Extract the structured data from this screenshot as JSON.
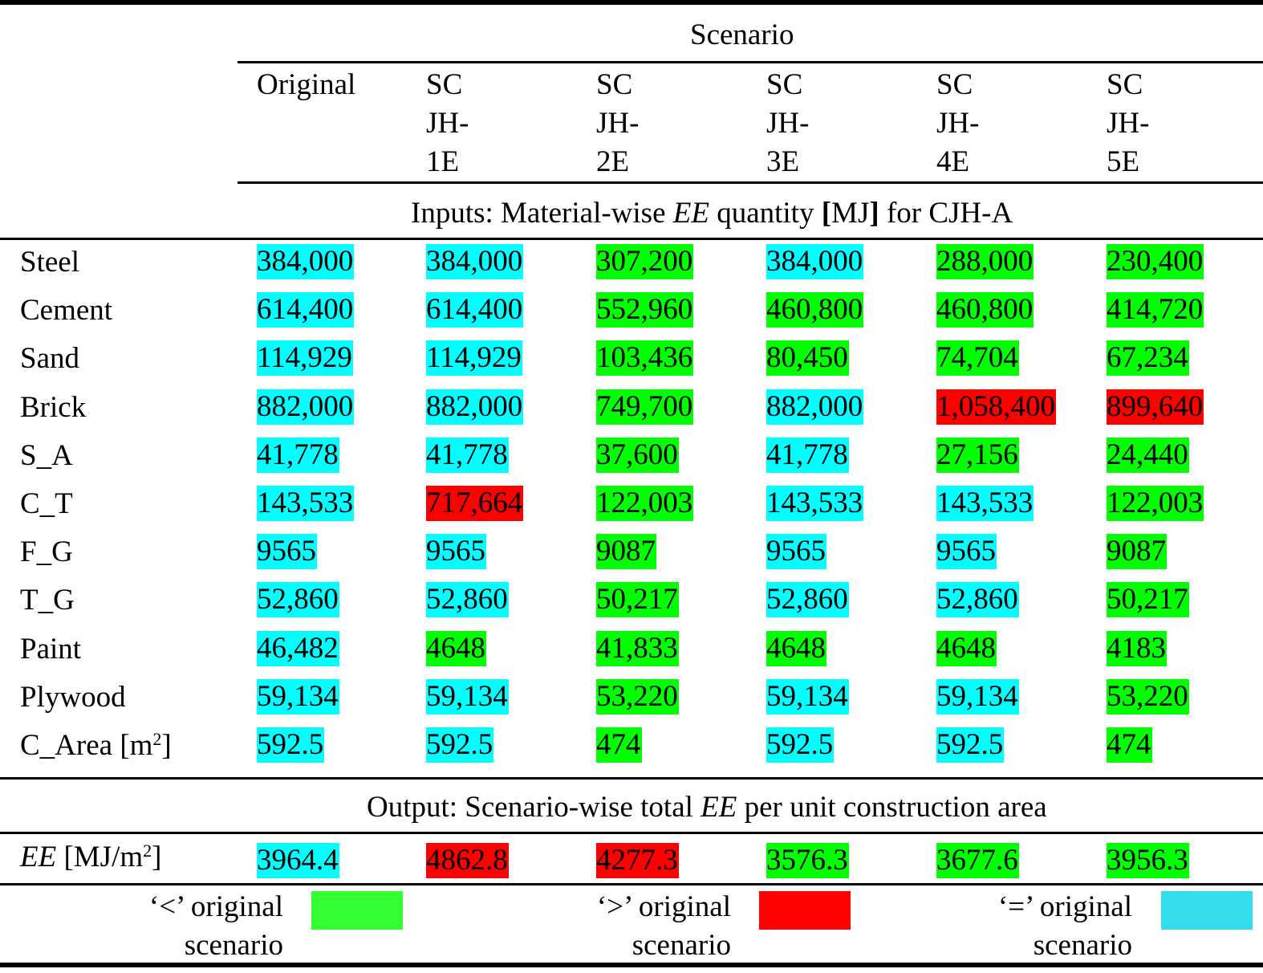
{
  "header": {
    "scenario_label": "Scenario",
    "columns": [
      "Original",
      "SC\nJH-\n1E",
      "SC\nJH-\n2E",
      "SC\nJH-\n3E",
      "SC\nJH-\n4E",
      "SC\nJH-\n5E"
    ]
  },
  "inputs_section": {
    "prefix": "Inputs: Material-wise ",
    "italic": "EE",
    "mid": " quantity ",
    "bold_open": "[",
    "unit": "MJ",
    "bold_close": "]",
    "suffix": " for CJH-A"
  },
  "rows": [
    {
      "label": "Steel",
      "values": [
        "384,000",
        "384,000",
        "307,200",
        "384,000",
        "288,000",
        "230,400"
      ],
      "status": [
        "eq",
        "eq",
        "less",
        "eq",
        "less",
        "less"
      ]
    },
    {
      "label": "Cement",
      "values": [
        "614,400",
        "614,400",
        "552,960",
        "460,800",
        "460,800",
        "414,720"
      ],
      "status": [
        "eq",
        "eq",
        "less",
        "less",
        "less",
        "less"
      ]
    },
    {
      "label": "Sand",
      "values": [
        "114,929",
        "114,929",
        "103,436",
        "80,450",
        "74,704",
        "67,234"
      ],
      "status": [
        "eq",
        "eq",
        "less",
        "less",
        "less",
        "less"
      ]
    },
    {
      "label": "Brick",
      "values": [
        "882,000",
        "882,000",
        "749,700",
        "882,000",
        "1,058,400",
        "899,640"
      ],
      "status": [
        "eq",
        "eq",
        "less",
        "eq",
        "more",
        "more"
      ]
    },
    {
      "label": "S_A",
      "values": [
        "41,778",
        "41,778",
        "37,600",
        "41,778",
        "27,156",
        "24,440"
      ],
      "status": [
        "eq",
        "eq",
        "less",
        "eq",
        "less",
        "less"
      ]
    },
    {
      "label": "C_T",
      "values": [
        "143,533",
        "717,664",
        "122,003",
        "143,533",
        "143,533",
        "122,003"
      ],
      "status": [
        "eq",
        "more",
        "less",
        "eq",
        "eq",
        "less"
      ]
    },
    {
      "label": "F_G",
      "values": [
        "9565",
        "9565",
        "9087",
        "9565",
        "9565",
        "9087"
      ],
      "status": [
        "eq",
        "eq",
        "less",
        "eq",
        "eq",
        "less"
      ]
    },
    {
      "label": "T_G",
      "values": [
        "52,860",
        "52,860",
        "50,217",
        "52,860",
        "52,860",
        "50,217"
      ],
      "status": [
        "eq",
        "eq",
        "less",
        "eq",
        "eq",
        "less"
      ]
    },
    {
      "label": "Paint",
      "values": [
        "46,482",
        "4648",
        "41,833",
        "4648",
        "4648",
        "4183"
      ],
      "status": [
        "eq",
        "less",
        "less",
        "less",
        "less",
        "less"
      ]
    },
    {
      "label": "Plywood",
      "values": [
        "59,134",
        "59,134",
        "53,220",
        "59,134",
        "59,134",
        "53,220"
      ],
      "status": [
        "eq",
        "eq",
        "less",
        "eq",
        "eq",
        "less"
      ]
    },
    {
      "label": "C_Area [m",
      "sup": "2",
      "label_end": "]",
      "values": [
        "592.5",
        "592.5",
        "474",
        "592.5",
        "592.5",
        "474"
      ],
      "status": [
        "eq",
        "eq",
        "less",
        "eq",
        "eq",
        "less"
      ]
    }
  ],
  "output_section": {
    "prefix": "Output: Scenario-wise total ",
    "italic": "EE",
    "suffix": " per unit construction area"
  },
  "output_row": {
    "label_italic": "EE",
    "label_rest": " [MJ/m",
    "sup": "2",
    "label_end": "]",
    "values": [
      "3964.4",
      "4862.8",
      "4277.3",
      "3576.3",
      "3677.6",
      "3956.3"
    ],
    "status": [
      "eq",
      "more",
      "more",
      "less",
      "less",
      "less"
    ]
  },
  "legend": [
    {
      "label": "‘<’ original\nscenario",
      "color": "#33ff33"
    },
    {
      "label": "‘>’ original\nscenario",
      "color": "#ff0000"
    },
    {
      "label": "‘=’ original\nscenario",
      "color": "#33ddee"
    }
  ]
}
